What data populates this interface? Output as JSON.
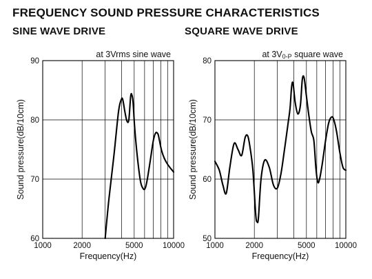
{
  "title": "FREQUENCY SOUND PRESSURE CHARACTERISTICS",
  "chart_data": [
    {
      "type": "line",
      "title": "SINE WAVE DRIVE",
      "annotation": "at 3Vrms sine wave",
      "xlabel": "Frequency(Hz)",
      "ylabel": "Sound pressure(dB/10cm)",
      "x_scale": "log",
      "xlim": [
        1000,
        10000
      ],
      "ylim": [
        60,
        90
      ],
      "x_ticks": [
        1000,
        2000,
        5000,
        10000
      ],
      "y_ticks": [
        60,
        70,
        80,
        90
      ],
      "grid": true,
      "series": [
        {
          "x": [
            3000,
            3200,
            3500,
            3800,
            4000,
            4100,
            4250,
            4400,
            4550,
            4700,
            4800,
            4900,
            5050,
            5300,
            5600,
            5900,
            6100,
            6300,
            6600,
            7000,
            7300,
            7600,
            7800,
            8100,
            8500,
            9000,
            9500,
            10000
          ],
          "y": [
            60.0,
            66.5,
            74.0,
            81.5,
            83.5,
            83.3,
            81.3,
            79.8,
            80.0,
            84.0,
            84.2,
            83.0,
            78.5,
            73.5,
            69.5,
            68.3,
            68.6,
            70.0,
            72.8,
            76.5,
            77.8,
            77.6,
            76.5,
            74.8,
            73.5,
            72.5,
            71.8,
            71.2
          ]
        }
      ]
    },
    {
      "type": "line",
      "title": "SQUARE WAVE DRIVE",
      "annotation_main": "at 3V",
      "annotation_sub": "0-P",
      "annotation_tail": " square wave",
      "xlabel": "Frequency(Hz)",
      "ylabel": "Sound pressure(dB/10cm)",
      "x_scale": "log",
      "xlim": [
        1000,
        10000
      ],
      "ylim": [
        50,
        80
      ],
      "x_ticks": [
        1000,
        2000,
        5000,
        10000
      ],
      "y_ticks": [
        50,
        60,
        70,
        80
      ],
      "grid": true,
      "series": [
        {
          "x": [
            1000,
            1080,
            1150,
            1220,
            1300,
            1400,
            1500,
            1600,
            1700,
            1780,
            1850,
            1950,
            2050,
            2100,
            2150,
            2250,
            2400,
            2600,
            2800,
            3000,
            3200,
            3400,
            3600,
            3750,
            3850,
            3950,
            4100,
            4300,
            4500,
            4650,
            4800,
            5000,
            5200,
            5450,
            5700,
            5900,
            6100,
            6300,
            6600,
            7000,
            7400,
            7800,
            8100,
            8500,
            9000,
            9500,
            10000
          ],
          "y": [
            63.0,
            61.5,
            59.0,
            57.6,
            62.0,
            66.0,
            65.0,
            64.0,
            67.0,
            67.3,
            65.5,
            61.5,
            54.0,
            52.8,
            53.5,
            60.0,
            63.2,
            62.0,
            59.0,
            58.5,
            61.0,
            65.0,
            69.0,
            72.0,
            75.5,
            76.2,
            73.0,
            71.0,
            72.5,
            76.8,
            77.1,
            74.0,
            71.0,
            68.0,
            66.5,
            62.0,
            59.5,
            60.0,
            62.5,
            66.5,
            69.5,
            70.5,
            70.0,
            68.0,
            64.5,
            62.0,
            61.5
          ]
        }
      ]
    }
  ]
}
